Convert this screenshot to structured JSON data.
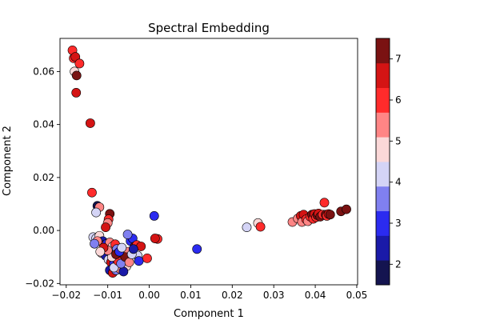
{
  "chart_data": {
    "type": "scatter",
    "title": "Spectral Embedding",
    "xlabel": "Component 1",
    "ylabel": "Component 2",
    "xlim": [
      -0.0215,
      0.0502
    ],
    "ylim": [
      -0.0205,
      0.0725
    ],
    "xticks": [
      -0.02,
      -0.01,
      0.0,
      0.01,
      0.02,
      0.03,
      0.04,
      0.05
    ],
    "xtick_labels": [
      "−0.02",
      "−0.01",
      "0.00",
      "0.01",
      "0.02",
      "0.03",
      "0.04",
      "0.05"
    ],
    "yticks": [
      -0.02,
      0.0,
      0.02,
      0.04,
      0.06
    ],
    "ytick_labels": [
      "−0.02",
      "0.00",
      "0.02",
      "0.04",
      "0.06"
    ],
    "grid": false,
    "colorbar": {
      "range": [
        1.5,
        7.5
      ],
      "ticks": [
        2,
        3,
        4,
        5,
        6,
        7
      ],
      "tick_labels": [
        "2",
        "3",
        "4",
        "5",
        "6",
        "7"
      ],
      "bands": [
        "#141450",
        "#1a1aa8",
        "#2b2bf0",
        "#8080f0",
        "#d4d4f6",
        "#fbd8d8",
        "#ff8585",
        "#ff2b2b",
        "#d41414",
        "#7a1212"
      ]
    },
    "points": [
      {
        "x": -0.0185,
        "y": 0.068,
        "c": 5.8
      },
      {
        "x": -0.0182,
        "y": 0.065,
        "c": 6.2
      },
      {
        "x": -0.0178,
        "y": 0.0655,
        "c": 6.6
      },
      {
        "x": -0.0168,
        "y": 0.063,
        "c": 5.8
      },
      {
        "x": -0.018,
        "y": 0.06,
        "c": 5.0
      },
      {
        "x": -0.0175,
        "y": 0.0585,
        "c": 7.0
      },
      {
        "x": -0.0176,
        "y": 0.052,
        "c": 6.7
      },
      {
        "x": -0.0142,
        "y": 0.0405,
        "c": 6.6
      },
      {
        "x": -0.0138,
        "y": 0.0143,
        "c": 6.1
      },
      {
        "x": -0.0125,
        "y": 0.0093,
        "c": 1.6
      },
      {
        "x": -0.012,
        "y": 0.0088,
        "c": 5.4
      },
      {
        "x": -0.0128,
        "y": 0.0068,
        "c": 4.3
      },
      {
        "x": -0.0095,
        "y": 0.0063,
        "c": 7.0
      },
      {
        "x": -0.0098,
        "y": 0.0042,
        "c": 5.8
      },
      {
        "x": -0.01,
        "y": 0.0028,
        "c": 5.2
      },
      {
        "x": -0.0105,
        "y": 0.0012,
        "c": 6.8
      },
      {
        "x": 0.0012,
        "y": 0.0055,
        "c": 3.0
      },
      {
        "x": -0.0135,
        "y": -0.0025,
        "c": 4.3
      },
      {
        "x": -0.0128,
        "y": -0.003,
        "c": 4.0
      },
      {
        "x": -0.012,
        "y": -0.002,
        "c": 4.6
      },
      {
        "x": -0.0112,
        "y": -0.004,
        "c": 2.5
      },
      {
        "x": -0.0108,
        "y": -0.0055,
        "c": 6.0
      },
      {
        "x": -0.0102,
        "y": -0.005,
        "c": 3.2
      },
      {
        "x": -0.0095,
        "y": -0.0045,
        "c": 5.5
      },
      {
        "x": -0.0088,
        "y": -0.006,
        "c": 4.5
      },
      {
        "x": -0.0082,
        "y": -0.0052,
        "c": 6.2
      },
      {
        "x": -0.0078,
        "y": -0.007,
        "c": 3.6
      },
      {
        "x": -0.0115,
        "y": -0.0085,
        "c": 5.0
      },
      {
        "x": -0.0105,
        "y": -0.0095,
        "c": 2.2
      },
      {
        "x": -0.0098,
        "y": -0.011,
        "c": 4.4
      },
      {
        "x": -0.0092,
        "y": -0.012,
        "c": 6.6
      },
      {
        "x": -0.0085,
        "y": -0.0125,
        "c": 2.8
      },
      {
        "x": -0.0078,
        "y": -0.013,
        "c": 5.7
      },
      {
        "x": -0.007,
        "y": -0.0105,
        "c": 4.0
      },
      {
        "x": -0.0065,
        "y": -0.009,
        "c": 6.3
      },
      {
        "x": -0.006,
        "y": -0.0115,
        "c": 3.3
      },
      {
        "x": -0.0055,
        "y": -0.0135,
        "c": 4.8
      },
      {
        "x": -0.005,
        "y": -0.008,
        "c": 5.3
      },
      {
        "x": -0.0045,
        "y": -0.004,
        "c": 2.9
      },
      {
        "x": -0.004,
        "y": -0.003,
        "c": 3.1
      },
      {
        "x": -0.0052,
        "y": -0.0015,
        "c": 3.7
      },
      {
        "x": -0.0035,
        "y": -0.006,
        "c": 6.9
      },
      {
        "x": -0.003,
        "y": -0.0055,
        "c": 5.9
      },
      {
        "x": -0.0028,
        "y": -0.0095,
        "c": 4.4
      },
      {
        "x": -0.0025,
        "y": -0.0115,
        "c": 2.7
      },
      {
        "x": -0.002,
        "y": -0.006,
        "c": 6.4
      },
      {
        "x": -0.0005,
        "y": -0.0105,
        "c": 5.7
      },
      {
        "x": 0.002,
        "y": -0.0032,
        "c": 6.3
      },
      {
        "x": 0.0014,
        "y": -0.003,
        "c": 6.8
      },
      {
        "x": -0.0095,
        "y": -0.015,
        "c": 2.4
      },
      {
        "x": -0.0088,
        "y": -0.016,
        "c": 6.6
      },
      {
        "x": -0.008,
        "y": -0.015,
        "c": 3.9
      },
      {
        "x": -0.007,
        "y": -0.0145,
        "c": 5.1
      },
      {
        "x": -0.0062,
        "y": -0.0155,
        "c": 2.1
      },
      {
        "x": -0.0085,
        "y": -0.014,
        "c": 4.2
      },
      {
        "x": -0.0075,
        "y": -0.0115,
        "c": 6.1
      },
      {
        "x": -0.0068,
        "y": -0.0125,
        "c": 3.4
      },
      {
        "x": -0.009,
        "y": -0.01,
        "c": 4.6
      },
      {
        "x": -0.01,
        "y": -0.0075,
        "c": 5.4
      },
      {
        "x": -0.011,
        "y": -0.0065,
        "c": 6.5
      },
      {
        "x": -0.0118,
        "y": -0.008,
        "c": 4.9
      },
      {
        "x": -0.0058,
        "y": -0.01,
        "c": 7.2
      },
      {
        "x": -0.0048,
        "y": -0.012,
        "c": 5.6
      },
      {
        "x": -0.0042,
        "y": -0.009,
        "c": 4.1
      },
      {
        "x": -0.0038,
        "y": -0.007,
        "c": 2.6
      },
      {
        "x": -0.008,
        "y": -0.009,
        "c": 6.9
      },
      {
        "x": -0.0072,
        "y": -0.008,
        "c": 3.0
      },
      {
        "x": -0.0066,
        "y": -0.0065,
        "c": 4.3
      },
      {
        "x": -0.0125,
        "y": -0.004,
        "c": 5.2
      },
      {
        "x": -0.0132,
        "y": -0.005,
        "c": 3.5
      },
      {
        "x": 0.0115,
        "y": -0.007,
        "c": 3.0
      },
      {
        "x": 0.0235,
        "y": 0.0012,
        "c": 4.4
      },
      {
        "x": 0.0262,
        "y": 0.0028,
        "c": 4.5
      },
      {
        "x": 0.0268,
        "y": 0.0014,
        "c": 6.1
      },
      {
        "x": 0.0345,
        "y": 0.0032,
        "c": 5.1
      },
      {
        "x": 0.0358,
        "y": 0.0045,
        "c": 5.5
      },
      {
        "x": 0.0365,
        "y": 0.0055,
        "c": 6.4
      },
      {
        "x": 0.0368,
        "y": 0.0032,
        "c": 5.3
      },
      {
        "x": 0.0372,
        "y": 0.006,
        "c": 6.7
      },
      {
        "x": 0.0378,
        "y": 0.0042,
        "c": 5.8
      },
      {
        "x": 0.0382,
        "y": 0.0035,
        "c": 5.6
      },
      {
        "x": 0.0388,
        "y": 0.0052,
        "c": 6.2
      },
      {
        "x": 0.0392,
        "y": 0.006,
        "c": 7.0
      },
      {
        "x": 0.0395,
        "y": 0.0044,
        "c": 6.0
      },
      {
        "x": 0.0398,
        "y": 0.0062,
        "c": 6.8
      },
      {
        "x": 0.0402,
        "y": 0.005,
        "c": 5.9
      },
      {
        "x": 0.0405,
        "y": 0.0058,
        "c": 7.1
      },
      {
        "x": 0.0408,
        "y": 0.0064,
        "c": 6.5
      },
      {
        "x": 0.0412,
        "y": 0.0052,
        "c": 6.9
      },
      {
        "x": 0.0418,
        "y": 0.006,
        "c": 6.3
      },
      {
        "x": 0.0422,
        "y": 0.0105,
        "c": 6.2
      },
      {
        "x": 0.0425,
        "y": 0.006,
        "c": 7.2
      },
      {
        "x": 0.0428,
        "y": 0.0055,
        "c": 5.7
      },
      {
        "x": 0.0432,
        "y": 0.0062,
        "c": 6.6
      },
      {
        "x": 0.0436,
        "y": 0.006,
        "c": 7.0
      },
      {
        "x": 0.0462,
        "y": 0.0072,
        "c": 7.1
      },
      {
        "x": 0.0475,
        "y": 0.008,
        "c": 7.3
      }
    ]
  }
}
